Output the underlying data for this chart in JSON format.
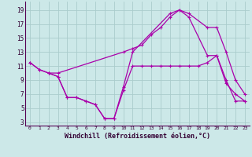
{
  "bg_color": "#cce8e8",
  "grid_color": "#aacccc",
  "line_color": "#aa00aa",
  "marker": "+",
  "markersize": 3,
  "linewidth": 0.9,
  "series1_x": [
    0,
    1,
    2,
    3,
    10,
    11,
    12,
    13,
    14,
    15,
    16,
    17,
    19,
    20,
    21,
    22,
    23
  ],
  "series1_y": [
    11.5,
    10.5,
    10.0,
    10.0,
    13.0,
    13.5,
    14.0,
    15.5,
    16.5,
    18.0,
    19.0,
    18.5,
    16.5,
    16.5,
    13.0,
    9.0,
    7.0
  ],
  "series2_x": [
    0,
    1,
    2,
    3,
    4,
    5,
    6,
    7,
    8,
    9,
    10,
    11,
    15,
    16,
    17,
    19,
    20,
    21,
    22,
    23
  ],
  "series2_y": [
    11.5,
    10.5,
    10.0,
    9.5,
    6.5,
    6.5,
    6.0,
    5.5,
    3.5,
    3.5,
    8.0,
    13.0,
    18.5,
    19.0,
    18.0,
    12.5,
    12.5,
    8.5,
    7.0,
    6.0
  ],
  "series3_x": [
    2,
    3,
    4,
    5,
    6,
    7,
    8,
    9,
    10,
    11,
    12,
    13,
    14,
    15,
    16,
    17,
    18,
    19,
    20,
    21,
    22,
    23
  ],
  "series3_y": [
    10.0,
    9.5,
    6.5,
    6.5,
    6.0,
    5.5,
    3.5,
    3.5,
    7.5,
    11.0,
    11.0,
    11.0,
    11.0,
    11.0,
    11.0,
    11.0,
    11.0,
    11.5,
    12.5,
    9.0,
    6.0,
    6.0
  ],
  "xlabel": "Windchill (Refroidissement éolien,°C)",
  "ylabel_ticks": [
    3,
    5,
    7,
    9,
    11,
    13,
    15,
    17,
    19
  ],
  "xtick_vals": [
    0,
    1,
    2,
    3,
    4,
    5,
    6,
    7,
    8,
    9,
    10,
    11,
    12,
    13,
    14,
    15,
    16,
    17,
    18,
    19,
    20,
    21,
    22,
    23
  ],
  "xlim": [
    -0.5,
    23.5
  ],
  "ylim": [
    2.5,
    20.2
  ]
}
